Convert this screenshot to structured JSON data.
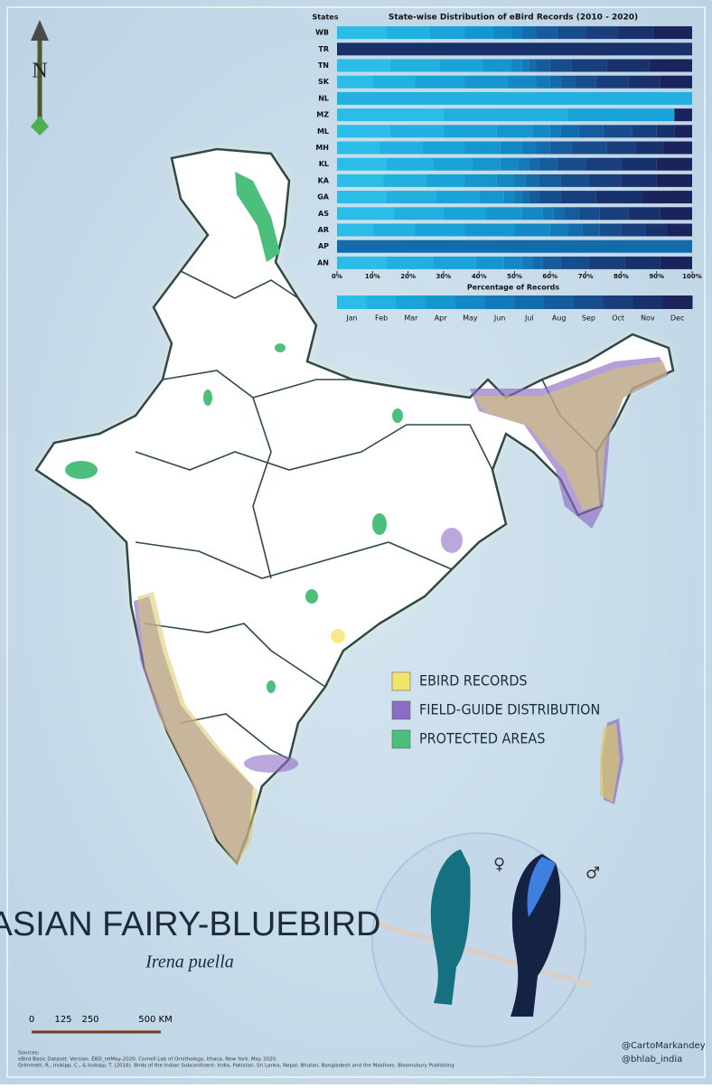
{
  "chart_data": {
    "type": "bar",
    "orientation": "horizontal",
    "stacked": true,
    "title": "State-wise Distribution of eBird Records (2010 - 2020)",
    "y_label": "States",
    "x_label": "Percentage of Records",
    "categories": [
      "WB",
      "TR",
      "TN",
      "SK",
      "NL",
      "MZ",
      "ML",
      "MH",
      "KL",
      "KA",
      "GA",
      "AS",
      "AR",
      "AP",
      "AN"
    ],
    "series": [
      {
        "name": "Jan",
        "color": "#2bbde8",
        "values": [
          14,
          0,
          15,
          10,
          0,
          30,
          15,
          12,
          14,
          13,
          14,
          16,
          10,
          0,
          14
        ]
      },
      {
        "name": "Feb",
        "color": "#22b0e0",
        "values": [
          12,
          0,
          14,
          12,
          100,
          35,
          15,
          12,
          13,
          12,
          14,
          14,
          12,
          0,
          13
        ]
      },
      {
        "name": "Mar",
        "color": "#1aa3d8",
        "values": [
          10,
          0,
          12,
          14,
          0,
          30,
          15,
          12,
          11,
          11,
          12,
          12,
          14,
          0,
          12
        ]
      },
      {
        "name": "Apr",
        "color": "#1596cf",
        "values": [
          8,
          0,
          8,
          12,
          0,
          0,
          10,
          10,
          8,
          9,
          7,
          10,
          14,
          0,
          8
        ]
      },
      {
        "name": "May",
        "color": "#1388c4",
        "values": [
          5,
          0,
          3,
          8,
          0,
          0,
          5,
          6,
          5,
          5,
          3,
          6,
          10,
          0,
          5
        ]
      },
      {
        "name": "Jun",
        "color": "#127ab8",
        "values": [
          3,
          0,
          2,
          4,
          0,
          0,
          3,
          4,
          3,
          3,
          2,
          3,
          5,
          0,
          3
        ]
      },
      {
        "name": "Jul",
        "color": "#136bab",
        "values": [
          4,
          0,
          2,
          3,
          0,
          0,
          5,
          4,
          3,
          4,
          2,
          3,
          4,
          100,
          3
        ]
      },
      {
        "name": "Aug",
        "color": "#155c9c",
        "values": [
          6,
          0,
          4,
          4,
          0,
          0,
          7,
          6,
          5,
          6,
          3,
          4,
          5,
          0,
          5
        ]
      },
      {
        "name": "Sep",
        "color": "#174d8c",
        "values": [
          8,
          0,
          6,
          6,
          0,
          0,
          8,
          10,
          8,
          8,
          6,
          6,
          6,
          0,
          8
        ]
      },
      {
        "name": "Oct",
        "color": "#183f7c",
        "values": [
          9,
          0,
          10,
          9,
          0,
          0,
          7,
          8,
          10,
          9,
          10,
          8,
          7,
          0,
          10
        ]
      },
      {
        "name": "Nov",
        "color": "#19316b",
        "values": [
          10,
          100,
          12,
          9,
          0,
          0,
          5,
          8,
          10,
          10,
          13,
          9,
          6,
          0,
          10
        ]
      },
      {
        "name": "Dec",
        "color": "#1a235a",
        "values": [
          11,
          0,
          12,
          9,
          0,
          5,
          5,
          8,
          10,
          10,
          14,
          9,
          7,
          0,
          9
        ]
      }
    ],
    "xlim": [
      0,
      100
    ],
    "xticks": [
      {
        "value": 0,
        "label": "0%"
      },
      {
        "value": 10,
        "label": "10%"
      },
      {
        "value": 20,
        "label": "20%"
      },
      {
        "value": 30,
        "label": "30%"
      },
      {
        "value": 40,
        "label": "40%"
      },
      {
        "value": 50,
        "label": "50%"
      },
      {
        "value": 60,
        "label": "60%"
      },
      {
        "value": 70,
        "label": "70%"
      },
      {
        "value": 80,
        "label": "80%"
      },
      {
        "value": 90,
        "label": "90%"
      },
      {
        "value": 100,
        "label": "100%"
      }
    ]
  },
  "map": {
    "title": "ASIAN FAIRY-BLUEBIRD",
    "scientific_name": "Irena puella",
    "north": "N",
    "legend": [
      {
        "label": "EBIRD RECORDS",
        "color": "#f3e36a"
      },
      {
        "label": "FIELD-GUIDE DISTRIBUTION",
        "color": "#8c6cc4"
      },
      {
        "label": "PROTECTED AREAS",
        "color": "#4cbf7c"
      }
    ],
    "scale": [
      "0",
      "125",
      "250",
      "500 KM"
    ],
    "female": "♀",
    "male": "♂",
    "sources": [
      "Sources:",
      "eBird Basic Dataset. Version: EBD_relMay-2020. Cornell Lab of Ornithology, Ithaca, New York. May 2020.",
      "Grimmett, R., Inskipp, C., & Inskipp, T. (2016). Birds of the Indian Subcontinent: India, Pakistan, Sri Lanka, Nepal, Bhutan, Bangladesh and the Maldives. Bloomsbury Publishing"
    ],
    "handles": [
      "@CartoMarkandey",
      "@bhlab_india"
    ]
  }
}
